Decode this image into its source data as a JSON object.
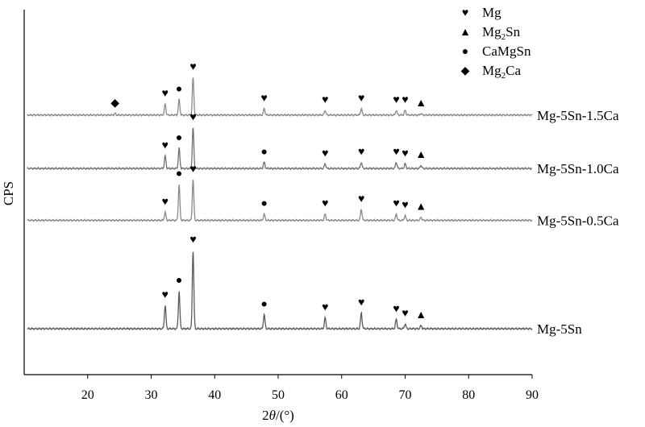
{
  "chart_data": {
    "type": "line",
    "title": "",
    "xlabel": "2θ/(°)",
    "xlabel_parts": {
      "var": "2",
      "theta": "θ",
      "unit": "/(°)"
    },
    "ylabel": "CPS",
    "xlim": [
      10,
      90
    ],
    "xticks": [
      20,
      30,
      40,
      50,
      60,
      70,
      80,
      90
    ],
    "grid": false,
    "legend_position": "top-right",
    "legend": [
      {
        "symbol": "heart",
        "label": "Mg",
        "text": "Mg"
      },
      {
        "symbol": "triangle",
        "label": "Mg2Sn",
        "text": "Mg",
        "sub": "2",
        "suffix": "Sn"
      },
      {
        "symbol": "dot",
        "label": "CaMgSn",
        "text": "CaMgSn"
      },
      {
        "symbol": "diamond",
        "label": "Mg2Ca",
        "text": "Mg",
        "sub": "2",
        "suffix": "Ca"
      }
    ],
    "series": [
      {
        "name": "Mg-5Sn",
        "baseline": 0,
        "color": "#5a5a5a",
        "peaks": [
          {
            "x": 32.2,
            "h": 15,
            "phase": "heart"
          },
          {
            "x": 34.4,
            "h": 24,
            "phase": "dot"
          },
          {
            "x": 36.6,
            "h": 50,
            "phase": "heart"
          },
          {
            "x": 47.8,
            "h": 9,
            "phase": "dot"
          },
          {
            "x": 57.4,
            "h": 7,
            "phase": "heart"
          },
          {
            "x": 63.1,
            "h": 10,
            "phase": "heart"
          },
          {
            "x": 68.6,
            "h": 6,
            "phase": "heart"
          },
          {
            "x": 70.0,
            "h": 3,
            "phase": "heart"
          },
          {
            "x": 72.5,
            "h": 2,
            "phase": "triangle"
          }
        ]
      },
      {
        "name": "Mg-5Sn-0.5Ca",
        "baseline": 69,
        "color": "#8a8a8a",
        "peaks": [
          {
            "x": 32.2,
            "h": 5,
            "phase": "heart"
          },
          {
            "x": 34.4,
            "h": 23,
            "phase": "dot"
          },
          {
            "x": 36.6,
            "h": 26,
            "phase": "heart"
          },
          {
            "x": 47.8,
            "h": 4,
            "phase": "dot"
          },
          {
            "x": 57.4,
            "h": 4,
            "phase": "heart"
          },
          {
            "x": 63.1,
            "h": 7,
            "phase": "heart"
          },
          {
            "x": 68.6,
            "h": 4,
            "phase": "heart"
          },
          {
            "x": 70.0,
            "h": 3,
            "phase": "heart"
          },
          {
            "x": 72.5,
            "h": 2,
            "phase": "triangle"
          }
        ]
      },
      {
        "name": "Mg-5Sn-1.0Ca",
        "baseline": 102,
        "color": "#707070",
        "peaks": [
          {
            "x": 32.2,
            "h": 8,
            "phase": "heart"
          },
          {
            "x": 34.4,
            "h": 13,
            "phase": "dot"
          },
          {
            "x": 36.6,
            "h": 26,
            "phase": "heart"
          },
          {
            "x": 47.8,
            "h": 4,
            "phase": "dot"
          },
          {
            "x": 57.4,
            "h": 3,
            "phase": "heart"
          },
          {
            "x": 63.1,
            "h": 4,
            "phase": "heart"
          },
          {
            "x": 68.6,
            "h": 4,
            "phase": "heart"
          },
          {
            "x": 70.0,
            "h": 3,
            "phase": "heart"
          },
          {
            "x": 72.5,
            "h": 2,
            "phase": "triangle"
          }
        ]
      },
      {
        "name": "Mg-5Sn-1.5Ca",
        "baseline": 136,
        "color": "#8a8a8a",
        "peaks": [
          {
            "x": 24.3,
            "h": 1,
            "phase": "diamond"
          },
          {
            "x": 32.2,
            "h": 7,
            "phase": "heart"
          },
          {
            "x": 34.4,
            "h": 10,
            "phase": "dot"
          },
          {
            "x": 36.6,
            "h": 24,
            "phase": "heart"
          },
          {
            "x": 47.8,
            "h": 4,
            "phase": "heart"
          },
          {
            "x": 57.4,
            "h": 3,
            "phase": "heart"
          },
          {
            "x": 63.1,
            "h": 4,
            "phase": "heart"
          },
          {
            "x": 68.6,
            "h": 3,
            "phase": "heart"
          },
          {
            "x": 70.0,
            "h": 3,
            "phase": "heart"
          },
          {
            "x": 72.5,
            "h": 1,
            "phase": "triangle"
          }
        ]
      }
    ]
  }
}
